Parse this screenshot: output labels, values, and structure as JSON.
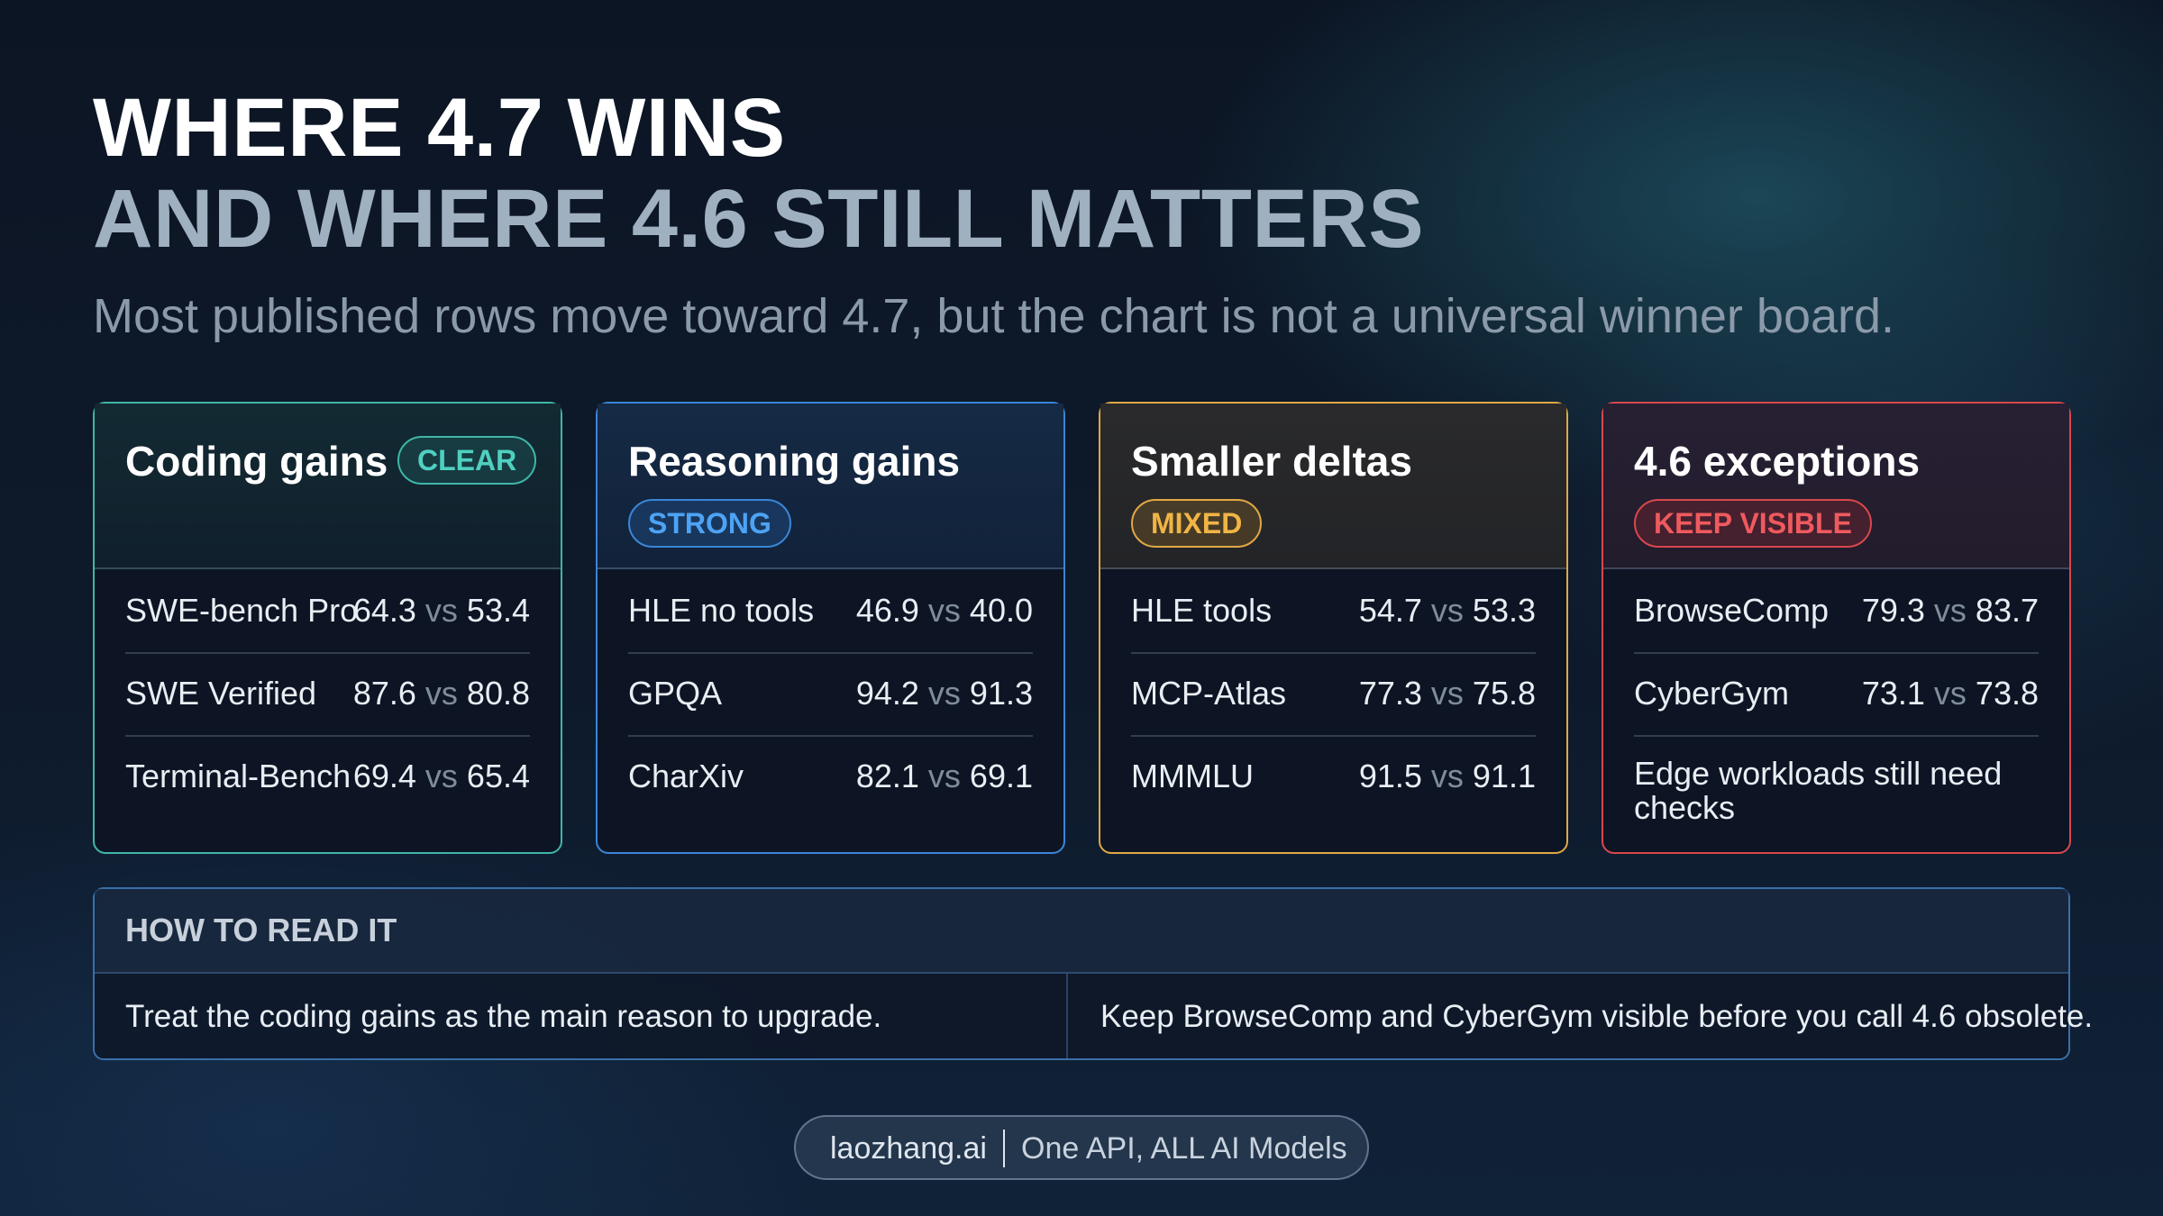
{
  "header": {
    "title_line1": "WHERE 4.7 WINS",
    "title_line2": "AND WHERE 4.6 STILL MATTERS",
    "subtitle": "Most published rows move toward 4.7, but the chart is not a universal winner board."
  },
  "vs_label": "vs",
  "cards": [
    {
      "title": "Coding gains",
      "badge": "CLEAR",
      "accent": "#3fb6a8",
      "rows": [
        {
          "name": "SWE-bench Pro",
          "a": "64.3",
          "b": "53.4"
        },
        {
          "name": "SWE Verified",
          "a": "87.6",
          "b": "80.8"
        },
        {
          "name": "Terminal-Bench",
          "a": "69.4",
          "b": "65.4"
        }
      ]
    },
    {
      "title": "Reasoning gains",
      "badge": "STRONG",
      "accent": "#3a86d8",
      "rows": [
        {
          "name": "HLE no tools",
          "a": "46.9",
          "b": "40.0"
        },
        {
          "name": "GPQA",
          "a": "94.2",
          "b": "91.3"
        },
        {
          "name": "CharXiv",
          "a": "82.1",
          "b": "69.1"
        }
      ]
    },
    {
      "title": "Smaller deltas",
      "badge": "MIXED",
      "accent": "#e0a845",
      "rows": [
        {
          "name": "HLE tools",
          "a": "54.7",
          "b": "53.3"
        },
        {
          "name": "MCP-Atlas",
          "a": "77.3",
          "b": "75.8"
        },
        {
          "name": "MMMLU",
          "a": "91.5",
          "b": "91.1"
        }
      ]
    },
    {
      "title": "4.6 exceptions",
      "badge": "KEEP VISIBLE",
      "accent": "#d9474c",
      "rows": [
        {
          "name": "BrowseComp",
          "a": "79.3",
          "b": "83.7"
        },
        {
          "name": "CyberGym",
          "a": "73.1",
          "b": "73.8"
        }
      ],
      "note": "Edge workloads still need checks"
    }
  ],
  "how_to_read": {
    "title": "HOW TO READ IT",
    "left": "Treat the coding gains as the main reason to upgrade.",
    "right": "Keep BrowseComp and CyberGym visible before you call 4.6 obsolete."
  },
  "footer": {
    "brand": "laozhang.ai",
    "tagline": "One API, ALL AI Models"
  }
}
